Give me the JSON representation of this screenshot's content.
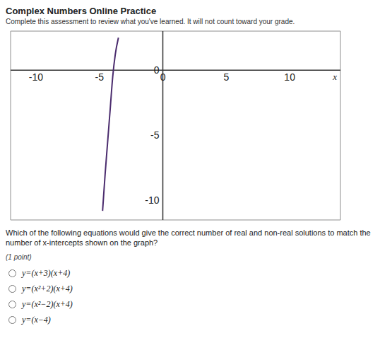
{
  "header": {
    "title": "Complex Numbers Online Practice",
    "subtitle": "Complete this assessment to review what you've learned. It will not count toward your grade."
  },
  "chart_data": {
    "type": "line",
    "x_label": "x",
    "xlim": [
      -12,
      14
    ],
    "ylim": [
      -11.5,
      3
    ],
    "xticks": [
      -10,
      -5,
      0,
      5,
      10
    ],
    "yticks": [
      -10,
      -5,
      0
    ],
    "grid": true,
    "color": "#4b2c6e",
    "x": [
      -4.75,
      -4.55,
      -4.35,
      -4.15,
      -3.95,
      -3.75,
      -3.5
    ],
    "values": [
      -10.8,
      -8,
      -5.5,
      -3,
      -0.5,
      1.2,
      2.5
    ]
  },
  "question": {
    "text": "Which of the following equations would give the correct number of real and non-real solutions to match the number of x-intercepts shown on the graph?",
    "points": "(1 point)",
    "options": [
      "y=(x+3)(x+4)",
      "y=(x²+2)(x+4)",
      "y=(x²−2)(x+4)",
      "y=(x−4)"
    ]
  }
}
